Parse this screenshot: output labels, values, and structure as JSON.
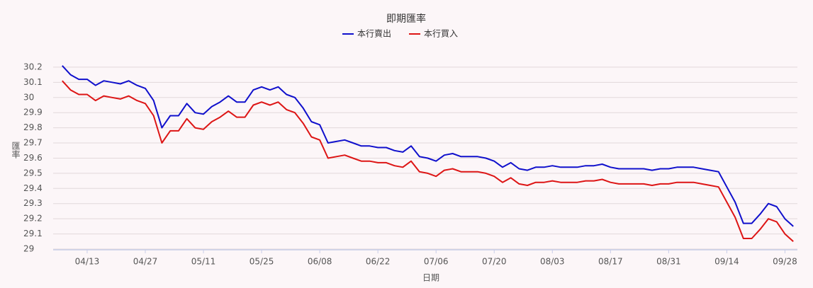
{
  "chart_data": {
    "type": "line",
    "title": "即期匯率",
    "x_label": "日期",
    "y_label": "匯率",
    "categories": [
      null,
      null,
      null,
      "04/13",
      null,
      null,
      null,
      null,
      null,
      null,
      "04/27",
      null,
      null,
      null,
      null,
      null,
      null,
      "05/11",
      null,
      null,
      null,
      null,
      null,
      null,
      "05/25",
      null,
      null,
      null,
      null,
      null,
      null,
      "06/08",
      null,
      null,
      null,
      null,
      null,
      null,
      "06/22",
      null,
      null,
      null,
      null,
      null,
      null,
      "07/06",
      null,
      null,
      null,
      null,
      null,
      null,
      "07/20",
      null,
      null,
      null,
      null,
      null,
      null,
      "08/03",
      null,
      null,
      null,
      null,
      null,
      null,
      "08/17",
      null,
      null,
      null,
      null,
      null,
      null,
      "08/31",
      null,
      null,
      null,
      null,
      null,
      null,
      "09/14",
      null,
      null,
      null,
      null,
      null,
      null,
      "09/28",
      null
    ],
    "series": [
      {
        "name": "本行賣出",
        "color": "#1010cc",
        "values": [
          30.21,
          30.15,
          30.12,
          30.12,
          30.08,
          30.11,
          30.1,
          30.09,
          30.11,
          30.08,
          30.06,
          29.98,
          29.8,
          29.88,
          29.88,
          29.96,
          29.9,
          29.89,
          29.94,
          29.97,
          30.01,
          29.97,
          29.97,
          30.05,
          30.07,
          30.05,
          30.07,
          30.02,
          30.0,
          29.93,
          29.84,
          29.82,
          29.7,
          29.71,
          29.72,
          29.7,
          29.68,
          29.68,
          29.67,
          29.67,
          29.65,
          29.64,
          29.68,
          29.61,
          29.6,
          29.58,
          29.62,
          29.63,
          29.61,
          29.61,
          29.61,
          29.6,
          29.58,
          29.54,
          29.57,
          29.53,
          29.52,
          29.54,
          29.54,
          29.55,
          29.54,
          29.54,
          29.54,
          29.55,
          29.55,
          29.56,
          29.54,
          29.53,
          29.53,
          29.53,
          29.53,
          29.52,
          29.53,
          29.53,
          29.54,
          29.54,
          29.54,
          29.53,
          29.52,
          29.51,
          29.41,
          29.31,
          29.17,
          29.17,
          29.23,
          29.3,
          29.28,
          29.2,
          29.15
        ]
      },
      {
        "name": "本行買入",
        "color": "#dd1515",
        "values": [
          30.11,
          30.05,
          30.02,
          30.02,
          29.98,
          30.01,
          30.0,
          29.99,
          30.01,
          29.98,
          29.96,
          29.88,
          29.7,
          29.78,
          29.78,
          29.86,
          29.8,
          29.79,
          29.84,
          29.87,
          29.91,
          29.87,
          29.87,
          29.95,
          29.97,
          29.95,
          29.97,
          29.92,
          29.9,
          29.83,
          29.74,
          29.72,
          29.6,
          29.61,
          29.62,
          29.6,
          29.58,
          29.58,
          29.57,
          29.57,
          29.55,
          29.54,
          29.58,
          29.51,
          29.5,
          29.48,
          29.52,
          29.53,
          29.51,
          29.51,
          29.51,
          29.5,
          29.48,
          29.44,
          29.47,
          29.43,
          29.42,
          29.44,
          29.44,
          29.45,
          29.44,
          29.44,
          29.44,
          29.45,
          29.45,
          29.46,
          29.44,
          29.43,
          29.43,
          29.43,
          29.43,
          29.42,
          29.43,
          29.43,
          29.44,
          29.44,
          29.44,
          29.43,
          29.42,
          29.41,
          29.31,
          29.21,
          29.07,
          29.07,
          29.13,
          29.2,
          29.18,
          29.1,
          29.05
        ]
      }
    ],
    "ylim": [
      29,
      30.3
    ],
    "yticks": [
      29,
      29.1,
      29.2,
      29.3,
      29.4,
      29.5,
      29.6,
      29.7,
      29.8,
      29.9,
      30,
      30.1,
      30.2
    ],
    "grid": true
  }
}
